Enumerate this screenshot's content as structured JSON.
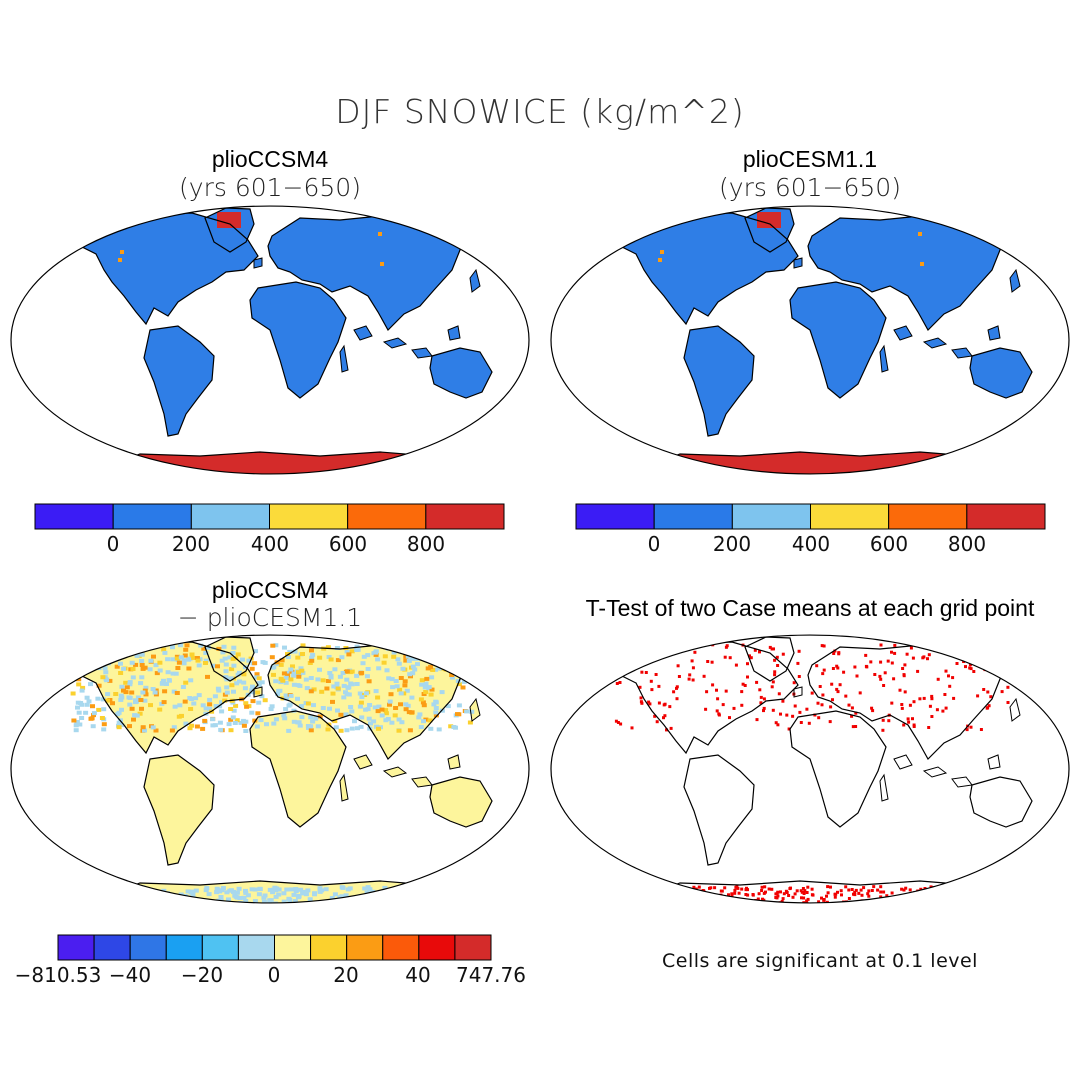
{
  "figure": {
    "title": "DJF SNOWICE (kg/m^2)"
  },
  "panels": [
    {
      "id": "top-left",
      "title": "plioCCSM4",
      "subtitle": "(yrs 601−650)",
      "field": "absolute",
      "colorbar": {
        "colors": [
          "#3b1cf5",
          "#2a7ae8",
          "#2f7ee6",
          "#7ec4ee",
          "#fbdb3a",
          "#fb6a0a",
          "#d42b2a"
        ],
        "tick_labels": [
          "0",
          "200",
          "400",
          "600",
          "800"
        ]
      }
    },
    {
      "id": "top-right",
      "title": "plioCESM1.1",
      "subtitle": "(yrs 601−650)",
      "field": "absolute",
      "colorbar": {
        "colors": [
          "#3b1cf5",
          "#2a7ae8",
          "#2f7ee6",
          "#7ec4ee",
          "#fbdb3a",
          "#fb6a0a",
          "#d42b2a"
        ],
        "tick_labels": [
          "0",
          "200",
          "400",
          "600",
          "800"
        ]
      }
    },
    {
      "id": "bottom-left",
      "title": "plioCCSM4",
      "subtitle": "− plioCESM1.1",
      "field": "difference",
      "colorbar": {
        "colors": [
          "#4b1ef0",
          "#2e47e6",
          "#2f76e6",
          "#1aa0f2",
          "#4fc2f2",
          "#a8d8ee",
          "#fdf59c",
          "#fbd12e",
          "#fb9c14",
          "#fb5a0a",
          "#e80a0a",
          "#d42b2a"
        ],
        "tick_labels": [
          "−810.53",
          "−40",
          "−20",
          "0",
          "20",
          "40",
          "747.76"
        ]
      }
    },
    {
      "id": "bottom-right",
      "title": "T-Test of two Case means at each grid point",
      "field": "significance",
      "note": "Cells are significant at 0.1 level"
    }
  ]
}
